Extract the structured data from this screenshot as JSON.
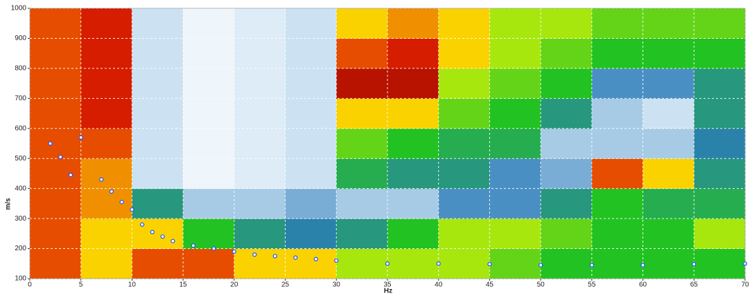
{
  "chart_data": {
    "type": "heatmap",
    "xlabel": "Hz",
    "ylabel": "m/s",
    "xlim": [
      0,
      70
    ],
    "ylim": [
      100,
      1000
    ],
    "xticks": [
      0,
      5,
      10,
      15,
      20,
      25,
      30,
      35,
      40,
      45,
      50,
      55,
      60,
      65,
      70
    ],
    "yticks": [
      100,
      200,
      300,
      400,
      500,
      600,
      700,
      800,
      900,
      1000
    ],
    "grid": true,
    "xbins": [
      0,
      5,
      10,
      15,
      20,
      25,
      30,
      35,
      40,
      45,
      50,
      55,
      60,
      65,
      70
    ],
    "ybins": [
      100,
      200,
      300,
      400,
      500,
      600,
      700,
      800,
      900,
      1000
    ],
    "colorscale": [
      "#ffffff",
      "#c6dff0",
      "#2b7bb9",
      "#22c222",
      "#ffff00",
      "#e02000",
      "#7a0000"
    ],
    "z": [
      [
        0.8,
        0.7,
        0.8,
        0.8,
        0.7,
        0.7,
        0.6,
        0.6,
        0.6,
        0.55,
        0.5,
        0.5,
        0.5,
        0.5
      ],
      [
        0.8,
        0.7,
        0.7,
        0.5,
        0.4,
        0.35,
        0.4,
        0.5,
        0.6,
        0.6,
        0.55,
        0.5,
        0.5,
        0.6
      ],
      [
        0.8,
        0.75,
        0.4,
        0.2,
        0.2,
        0.25,
        0.2,
        0.2,
        0.3,
        0.3,
        0.4,
        0.5,
        0.45,
        0.45
      ],
      [
        0.8,
        0.75,
        0.15,
        0.05,
        0.1,
        0.15,
        0.45,
        0.4,
        0.4,
        0.3,
        0.25,
        0.8,
        0.7,
        0.4
      ],
      [
        0.8,
        0.8,
        0.15,
        0.05,
        0.1,
        0.15,
        0.55,
        0.5,
        0.45,
        0.45,
        0.2,
        0.2,
        0.2,
        0.35
      ],
      [
        0.8,
        0.85,
        0.15,
        0.05,
        0.1,
        0.15,
        0.7,
        0.7,
        0.55,
        0.5,
        0.4,
        0.2,
        0.15,
        0.4
      ],
      [
        0.8,
        0.85,
        0.15,
        0.05,
        0.1,
        0.15,
        0.9,
        0.9,
        0.6,
        0.55,
        0.5,
        0.3,
        0.3,
        0.4
      ],
      [
        0.8,
        0.85,
        0.15,
        0.05,
        0.1,
        0.15,
        0.8,
        0.85,
        0.7,
        0.6,
        0.55,
        0.5,
        0.5,
        0.5
      ],
      [
        0.8,
        0.85,
        0.15,
        0.05,
        0.1,
        0.15,
        0.7,
        0.75,
        0.7,
        0.6,
        0.6,
        0.55,
        0.55,
        0.55
      ]
    ],
    "points": {
      "color": "#1f4fff",
      "x": [
        2,
        3,
        4,
        5,
        7,
        8,
        9,
        10,
        11,
        12,
        13,
        14,
        16,
        18,
        20,
        22,
        24,
        26,
        28,
        30,
        35,
        40,
        45,
        50,
        55,
        60,
        65,
        70
      ],
      "y": [
        550,
        505,
        445,
        570,
        430,
        390,
        355,
        330,
        280,
        255,
        240,
        225,
        210,
        200,
        190,
        180,
        175,
        170,
        165,
        160,
        150,
        150,
        148,
        145,
        145,
        145,
        148,
        150
      ]
    }
  }
}
